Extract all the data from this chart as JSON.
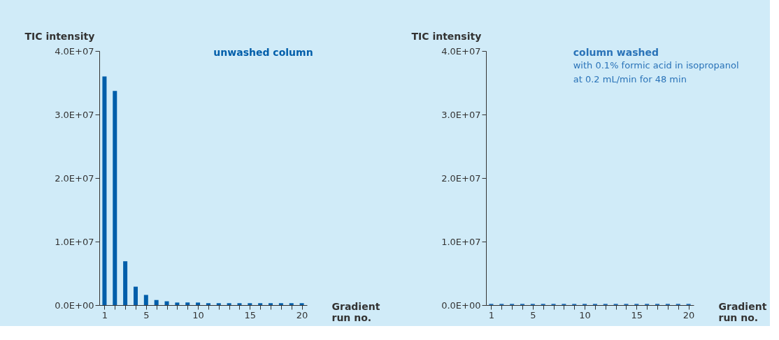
{
  "chart_data": [
    {
      "type": "bar",
      "title": "unwashed column",
      "ylabel": "TIC intensity",
      "xlabel": "Gradient\nrun no.",
      "x": [
        1,
        2,
        3,
        4,
        5,
        6,
        7,
        8,
        9,
        10,
        11,
        12,
        13,
        14,
        15,
        16,
        17,
        18,
        19,
        20
      ],
      "series": [
        {
          "color": "#005eaa",
          "values": [
            36000000,
            33700000,
            6900000,
            2900000,
            1600000,
            800000,
            600000,
            400000,
            400000,
            400000,
            300000,
            300000,
            300000,
            300000,
            300000,
            300000,
            300000,
            300000,
            300000,
            300000
          ]
        }
      ],
      "xlim": [
        0.5,
        20.5
      ],
      "xticks": [
        1,
        {
          "value": 2,
          "label": null
        },
        {
          "value": 3,
          "label": null
        },
        {
          "value": 4,
          "label": null
        },
        5,
        {
          "value": 6,
          "label": null
        },
        {
          "value": 7,
          "label": null
        },
        {
          "value": 8,
          "label": null
        },
        {
          "value": 9,
          "label": null
        },
        10,
        {
          "value": 11,
          "label": null
        },
        {
          "value": 12,
          "label": null
        },
        {
          "value": 13,
          "label": null
        },
        {
          "value": 14,
          "label": null
        },
        15,
        {
          "value": 16,
          "label": null
        },
        {
          "value": 17,
          "label": null
        },
        {
          "value": 18,
          "label": null
        },
        {
          "value": 19,
          "label": null
        },
        20
      ],
      "ylim": [
        0,
        40000000
      ],
      "yticks": [
        {
          "value": 0,
          "label": "0.0E+00"
        },
        {
          "value": 10000000,
          "label": "1.0E+07"
        },
        {
          "value": 20000000,
          "label": "2.0E+07"
        },
        {
          "value": 30000000,
          "label": "3.0E+07"
        },
        {
          "value": 40000000,
          "label": "4.0E+07"
        }
      ],
      "grid": false,
      "legend": false
    },
    {
      "type": "bar",
      "title": "column washed",
      "subtitle": "with 0.1% formic acid in isopropanol\nat 0.2 mL/min for 48 min",
      "ylabel": "TIC intensity",
      "xlabel": "Gradient\nrun no.",
      "x": [
        1,
        2,
        3,
        4,
        5,
        6,
        7,
        8,
        9,
        10,
        11,
        12,
        13,
        14,
        15,
        16,
        17,
        18,
        19,
        20
      ],
      "series": [
        {
          "color": "#2a73b8",
          "values": [
            200000,
            200000,
            200000,
            200000,
            200000,
            200000,
            200000,
            200000,
            200000,
            200000,
            200000,
            200000,
            200000,
            200000,
            200000,
            200000,
            200000,
            200000,
            200000,
            200000
          ]
        }
      ],
      "xlim": [
        0.5,
        20.5
      ],
      "xticks": [
        1,
        {
          "value": 2,
          "label": null
        },
        {
          "value": 3,
          "label": null
        },
        {
          "value": 4,
          "label": null
        },
        5,
        {
          "value": 6,
          "label": null
        },
        {
          "value": 7,
          "label": null
        },
        {
          "value": 8,
          "label": null
        },
        {
          "value": 9,
          "label": null
        },
        10,
        {
          "value": 11,
          "label": null
        },
        {
          "value": 12,
          "label": null
        },
        {
          "value": 13,
          "label": null
        },
        {
          "value": 14,
          "label": null
        },
        15,
        {
          "value": 16,
          "label": null
        },
        {
          "value": 17,
          "label": null
        },
        {
          "value": 18,
          "label": null
        },
        {
          "value": 19,
          "label": null
        },
        20
      ],
      "ylim": [
        0,
        40000000
      ],
      "yticks": [
        {
          "value": 0,
          "label": "0.0E+00"
        },
        {
          "value": 10000000,
          "label": "1.0E+07"
        },
        {
          "value": 20000000,
          "label": "2.0E+07"
        },
        {
          "value": 30000000,
          "label": "3.0E+07"
        },
        {
          "value": 40000000,
          "label": "4.0E+07"
        }
      ],
      "grid": false,
      "legend": false
    }
  ]
}
